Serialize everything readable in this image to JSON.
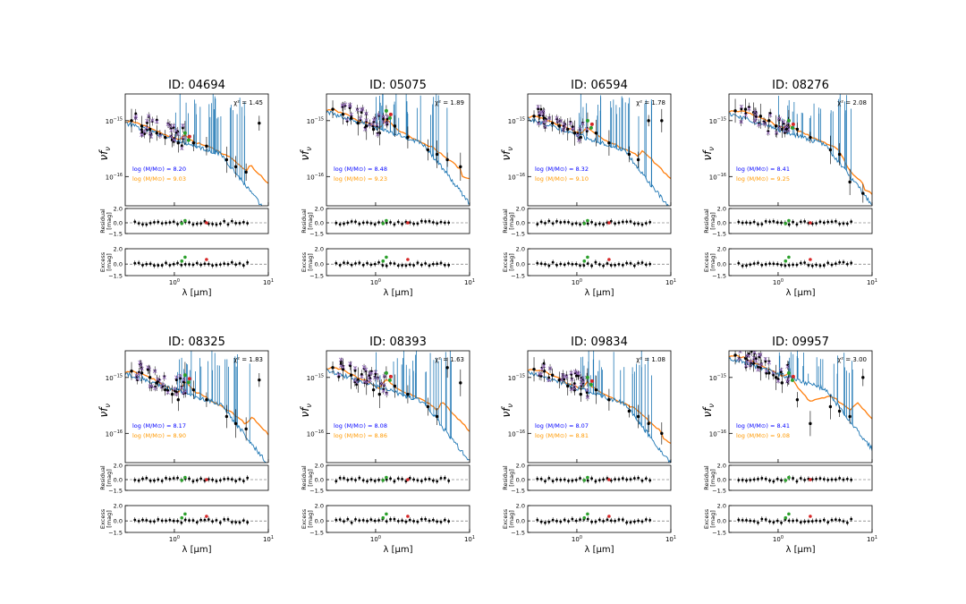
{
  "figure": {
    "panels": [
      {
        "id_label": "ID: 04694",
        "chi2": "χ² = 1.45",
        "mass_blue": "log (M/M⊙) = 8.20",
        "mass_orange": "log (M/M⊙) = 9.03"
      },
      {
        "id_label": "ID: 05075",
        "chi2": "χ² = 1.89",
        "mass_blue": "log (M/M⊙) = 8.48",
        "mass_orange": "log (M/M⊙) = 9.23"
      },
      {
        "id_label": "ID: 06594",
        "chi2": "χ² = 1.78",
        "mass_blue": "log (M/M⊙) = 8.32",
        "mass_orange": "log (M/M⊙) = 9.10"
      },
      {
        "id_label": "ID: 08276",
        "chi2": "χ² = 2.08",
        "mass_blue": "log (M/M⊙) = 8.41",
        "mass_orange": "log (M/M⊙) = 9.25"
      },
      {
        "id_label": "ID: 08325",
        "chi2": "χ² = 1.83",
        "mass_blue": "log (M/M⊙) = 8.17",
        "mass_orange": "log (M/M⊙) = 8.90"
      },
      {
        "id_label": "ID: 08393",
        "chi2": "χ² = 1.63",
        "mass_blue": "log (M/M⊙) = 8.08",
        "mass_orange": "log (M/M⊙) = 8.86"
      },
      {
        "id_label": "ID: 09834",
        "chi2": "χ² = 1.08",
        "mass_blue": "log (M/M⊙) = 8.07",
        "mass_orange": "log (M/M⊙) = 8.81"
      },
      {
        "id_label": "ID: 09957",
        "chi2": "χ² = 3.00",
        "mass_blue": "log (M/M⊙) = 8.41",
        "mass_orange": "log (M/M⊙) = 9.08"
      }
    ],
    "labels": {
      "ylabel_main": "νf",
      "ylabel_main_sub": "ν",
      "ylabel_residual": [
        "Residual",
        "[mag]"
      ],
      "ylabel_excess": [
        "Excess",
        "[mag]"
      ],
      "xlabel": "λ [μm]",
      "ytick_1e15": "10",
      "ytick_1e15_exp": "−15",
      "ytick_1e16": "10",
      "ytick_1e16_exp": "−16",
      "xtick_base": "10",
      "xtick_exp_0": "0",
      "xtick_exp_1": "1",
      "res_ticks": [
        "2.0",
        "0.0",
        "−1.5"
      ]
    },
    "colors": {
      "model_blue": "#1f77b4",
      "model_orange": "#ff7f0e",
      "model_points": "#9467bd",
      "obs": "#000000",
      "excess_green": "#2ca02c",
      "excess_red": "#d62728",
      "mass_blue_text": "#0000ff",
      "mass_orange_text": "#ff9900"
    }
  },
  "chart_data": [
    {
      "type": "scatter",
      "title": "ID: 04694",
      "xlabel": "λ [μm]",
      "ylabel": "νfν",
      "x_scale": "log",
      "y_scale": "log",
      "xlim": [
        0.3,
        10
      ],
      "ylim": [
        3e-17,
        3e-15
      ],
      "annotations": [
        "χ² = 1.45",
        "log (M/M⊙) = 8.20",
        "log (M/M⊙) = 9.03"
      ],
      "residual_ylim": [
        -1.5,
        2.0
      ],
      "excess_ylim": [
        -1.5,
        2.0
      ],
      "series": [
        {
          "name": "observed",
          "x": [
            0.35,
            0.45,
            0.55,
            0.65,
            0.8,
            0.95,
            1.1,
            1.3,
            1.6,
            2.2,
            3.6,
            4.5,
            5.8,
            8.0
          ],
          "y": [
            1e-15,
            8e-16,
            7e-16,
            6e-16,
            5e-16,
            4.5e-16,
            4e-16,
            6e-16,
            4e-16,
            3.5e-16,
            2e-16,
            1.5e-16,
            1.2e-16,
            9e-16
          ]
        }
      ]
    },
    {
      "type": "scatter",
      "title": "ID: 05075",
      "xlabel": "λ [μm]",
      "ylabel": "νfν",
      "x_scale": "log",
      "y_scale": "log",
      "xlim": [
        0.3,
        10
      ],
      "ylim": [
        3e-17,
        3e-15
      ],
      "annotations": [
        "χ² = 1.89",
        "log (M/M⊙) = 8.48",
        "log (M/M⊙) = 9.23"
      ],
      "residual_ylim": [
        -1.5,
        2.0
      ],
      "excess_ylim": [
        -1.5,
        2.0
      ],
      "series": [
        {
          "name": "observed",
          "x": [
            0.35,
            0.45,
            0.55,
            0.65,
            0.8,
            0.95,
            1.1,
            1.3,
            1.6,
            2.2,
            3.6,
            4.5,
            5.8,
            8.0
          ],
          "y": [
            1.6e-15,
            1.3e-15,
            1.1e-15,
            9e-16,
            8e-16,
            7e-16,
            6e-16,
            1.5e-15,
            8e-16,
            5e-16,
            3e-16,
            2.5e-16,
            2e-16,
            1.5e-16
          ]
        }
      ]
    },
    {
      "type": "scatter",
      "title": "ID: 06594",
      "xlabel": "λ [μm]",
      "ylabel": "νfν",
      "x_scale": "log",
      "y_scale": "log",
      "xlim": [
        0.3,
        10
      ],
      "ylim": [
        3e-17,
        3e-15
      ],
      "annotations": [
        "χ² = 1.78",
        "log (M/M⊙) = 8.32",
        "log (M/M⊙) = 9.10"
      ],
      "residual_ylim": [
        -1.5,
        2.0
      ],
      "excess_ylim": [
        -1.5,
        2.0
      ],
      "series": [
        {
          "name": "observed",
          "x": [
            0.35,
            0.45,
            0.55,
            0.65,
            0.8,
            0.95,
            1.1,
            1.3,
            1.6,
            2.2,
            3.6,
            4.5,
            5.8,
            8.0
          ],
          "y": [
            1.2e-15,
            1.1e-15,
            9e-16,
            8e-16,
            7e-16,
            6e-16,
            5e-16,
            1e-15,
            6e-16,
            4e-16,
            2.5e-16,
            2e-16,
            1e-15,
            1e-15
          ]
        }
      ]
    },
    {
      "type": "scatter",
      "title": "ID: 08276",
      "xlabel": "λ [μm]",
      "ylabel": "νfν",
      "x_scale": "log",
      "y_scale": "log",
      "xlim": [
        0.3,
        10
      ],
      "ylim": [
        3e-17,
        3e-15
      ],
      "annotations": [
        "χ² = 2.08",
        "log (M/M⊙) = 8.41",
        "log (M/M⊙) = 9.25"
      ],
      "residual_ylim": [
        -1.5,
        2.0
      ],
      "excess_ylim": [
        -1.5,
        2.0
      ],
      "series": [
        {
          "name": "observed",
          "x": [
            0.35,
            0.45,
            0.55,
            0.65,
            0.8,
            0.95,
            1.1,
            1.3,
            1.6,
            2.2,
            3.6,
            4.5,
            5.8,
            8.0
          ],
          "y": [
            1.5e-15,
            1.6e-15,
            1.4e-15,
            1.2e-15,
            1e-15,
            8e-16,
            7e-16,
            1e-15,
            7e-16,
            5e-16,
            3e-16,
            2.5e-16,
            8e-17,
            5e-17
          ]
        }
      ]
    },
    {
      "type": "scatter",
      "title": "ID: 08325",
      "xlabel": "λ [μm]",
      "ylabel": "νfν",
      "x_scale": "log",
      "y_scale": "log",
      "xlim": [
        0.3,
        10
      ],
      "ylim": [
        3e-17,
        3e-15
      ],
      "annotations": [
        "χ² = 1.83",
        "log (M/M⊙) = 8.17",
        "log (M/M⊙) = 8.90"
      ],
      "residual_ylim": [
        -1.5,
        2.0
      ],
      "excess_ylim": [
        -1.5,
        2.0
      ],
      "series": [
        {
          "name": "observed",
          "x": [
            0.35,
            0.45,
            0.55,
            0.65,
            0.8,
            0.95,
            1.1,
            1.3,
            1.6,
            2.2,
            3.6,
            4.5,
            5.8,
            8.0
          ],
          "y": [
            1.3e-15,
            1.2e-15,
            1e-15,
            8e-16,
            6e-16,
            5e-16,
            4e-16,
            1.1e-15,
            6e-16,
            4e-16,
            2e-16,
            1.5e-16,
            1.2e-16,
            9e-16
          ]
        }
      ]
    },
    {
      "type": "scatter",
      "title": "ID: 08393",
      "xlabel": "λ [μm]",
      "ylabel": "νfν",
      "x_scale": "log",
      "y_scale": "log",
      "xlim": [
        0.3,
        10
      ],
      "ylim": [
        3e-17,
        3e-15
      ],
      "annotations": [
        "χ² = 1.63",
        "log (M/M⊙) = 8.08",
        "log (M/M⊙) = 8.86"
      ],
      "residual_ylim": [
        -1.5,
        2.0
      ],
      "excess_ylim": [
        -1.5,
        2.0
      ],
      "series": [
        {
          "name": "observed",
          "x": [
            0.35,
            0.45,
            0.55,
            0.65,
            0.8,
            0.95,
            1.1,
            1.3,
            1.6,
            2.2,
            3.6,
            4.5,
            5.8,
            8.0
          ],
          "y": [
            1.5e-15,
            1.4e-15,
            1.1e-15,
            9e-16,
            8e-16,
            6e-16,
            5e-16,
            1.2e-15,
            7e-16,
            5e-16,
            3e-16,
            2e-16,
            1.5e-15,
            8e-16
          ]
        }
      ]
    },
    {
      "type": "scatter",
      "title": "ID: 09834",
      "xlabel": "λ [μm]",
      "ylabel": "νfν",
      "x_scale": "log",
      "y_scale": "log",
      "xlim": [
        0.3,
        10
      ],
      "ylim": [
        3e-17,
        3e-15
      ],
      "annotations": [
        "χ² = 1.08",
        "log (M/M⊙) = 8.07",
        "log (M/M⊙) = 8.81"
      ],
      "residual_ylim": [
        -1.5,
        2.0
      ],
      "excess_ylim": [
        -1.5,
        2.0
      ],
      "series": [
        {
          "name": "observed",
          "x": [
            0.35,
            0.45,
            0.55,
            0.65,
            0.8,
            0.95,
            1.1,
            1.3,
            1.6,
            2.2,
            3.6,
            4.5,
            5.8,
            8.0
          ],
          "y": [
            1.4e-15,
            1.3e-15,
            1.1e-15,
            9e-16,
            7e-16,
            6e-16,
            5e-16,
            1e-15,
            6e-16,
            4e-16,
            2.5e-16,
            2e-16,
            1.5e-16,
            1e-16
          ]
        }
      ]
    },
    {
      "type": "scatter",
      "title": "ID: 09957",
      "xlabel": "λ [μm]",
      "ylabel": "νfν",
      "x_scale": "log",
      "y_scale": "log",
      "xlim": [
        0.3,
        10
      ],
      "ylim": [
        3e-17,
        3e-15
      ],
      "annotations": [
        "χ² = 3.00",
        "log (M/M⊙) = 8.41",
        "log (M/M⊙) = 9.08"
      ],
      "residual_ylim": [
        -1.5,
        2.0
      ],
      "excess_ylim": [
        -1.5,
        2.0
      ],
      "series": [
        {
          "name": "observed",
          "x": [
            0.35,
            0.45,
            0.55,
            0.65,
            0.8,
            0.95,
            1.1,
            1.3,
            1.6,
            2.2,
            3.6,
            4.5,
            5.8,
            8.0
          ],
          "y": [
            2.5e-15,
            2.2e-15,
            1.8e-15,
            1.5e-15,
            1.2e-15,
            1e-15,
            8e-16,
            1.2e-15,
            4e-16,
            1.5e-16,
            3e-16,
            2.5e-16,
            2e-16,
            1e-15
          ]
        }
      ]
    }
  ]
}
